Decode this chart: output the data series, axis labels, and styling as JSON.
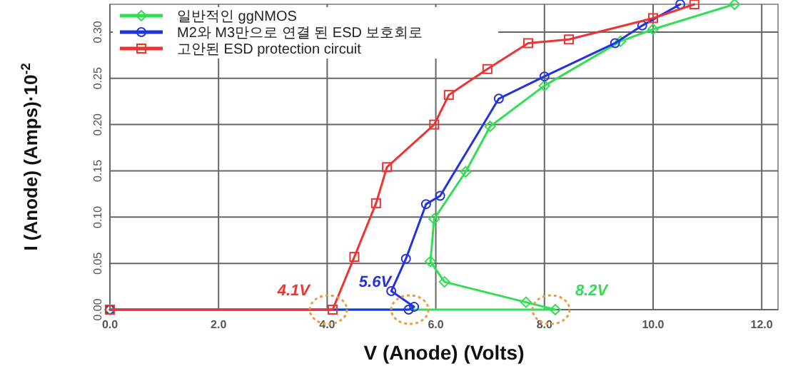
{
  "chart_data": {
    "type": "line",
    "xlabel": "V (Anode) (Volts)",
    "ylabel": "I (Anode) (Amps)·10$^{-2}$",
    "xlim": [
      0,
      12.3
    ],
    "ylim": [
      0,
      0.33
    ],
    "xticks": [
      {
        "value": 0,
        "label": "0.0"
      },
      {
        "value": 2,
        "label": "2.0"
      },
      {
        "value": 4,
        "label": "4.0"
      },
      {
        "value": 6,
        "label": "6.0"
      },
      {
        "value": 8,
        "label": "8.0"
      },
      {
        "value": 10,
        "label": "10.0"
      },
      {
        "value": 12,
        "label": "12.0"
      }
    ],
    "yticks": [
      {
        "value": 0,
        "label": "0.00"
      },
      {
        "value": 0.05,
        "label": "0.05"
      },
      {
        "value": 0.1,
        "label": "0.10"
      },
      {
        "value": 0.15,
        "label": "0.15"
      },
      {
        "value": 0.2,
        "label": "0.20"
      },
      {
        "value": 0.25,
        "label": "0.25"
      },
      {
        "value": 0.3,
        "label": "0.30"
      }
    ],
    "grid": true,
    "legend": "top left",
    "line_style": "solid",
    "series": [
      {
        "name": "일반적인 ggNMOS",
        "color": "#33dd55",
        "marker": "diamond",
        "x": [
          0,
          8.2,
          7.66,
          6.16,
          5.9,
          5.97,
          6.55,
          7.0,
          8.0,
          9.4,
          10.0,
          11.5
        ],
        "values": [
          0,
          0,
          0.008,
          0.03,
          0.052,
          0.098,
          0.149,
          0.198,
          0.242,
          0.29,
          0.303,
          0.33
        ]
      },
      {
        "name": "M2와 M3만으로 연결 된 ESD 보호회로",
        "color": "#2233dd",
        "marker": "circle",
        "x": [
          0,
          5.5,
          5.6,
          5.18,
          5.45,
          5.82,
          6.08,
          7.16,
          8.0,
          9.3,
          9.8,
          10.5
        ],
        "values": [
          0,
          0,
          0.003,
          0.02,
          0.055,
          0.114,
          0.123,
          0.228,
          0.252,
          0.288,
          0.307,
          0.33
        ]
      },
      {
        "name": "고안된 ESD protection circuit",
        "color": "#ee3333",
        "marker": "square",
        "x": [
          0,
          4.1,
          4.5,
          4.9,
          5.1,
          5.97,
          6.24,
          6.95,
          7.7,
          8.45,
          10.0,
          10.76
        ],
        "values": [
          0,
          0,
          0.057,
          0.115,
          0.154,
          0.2,
          0.232,
          0.26,
          0.288,
          0.292,
          0.315,
          0.33
        ]
      }
    ],
    "annotations": [
      {
        "text": "8.2V",
        "x": 8.2,
        "y": 0
      },
      {
        "text": "5.6V",
        "x": 5.6,
        "y": 0
      },
      {
        "text": "4.1V",
        "x": 4.1,
        "y": 0
      }
    ]
  }
}
